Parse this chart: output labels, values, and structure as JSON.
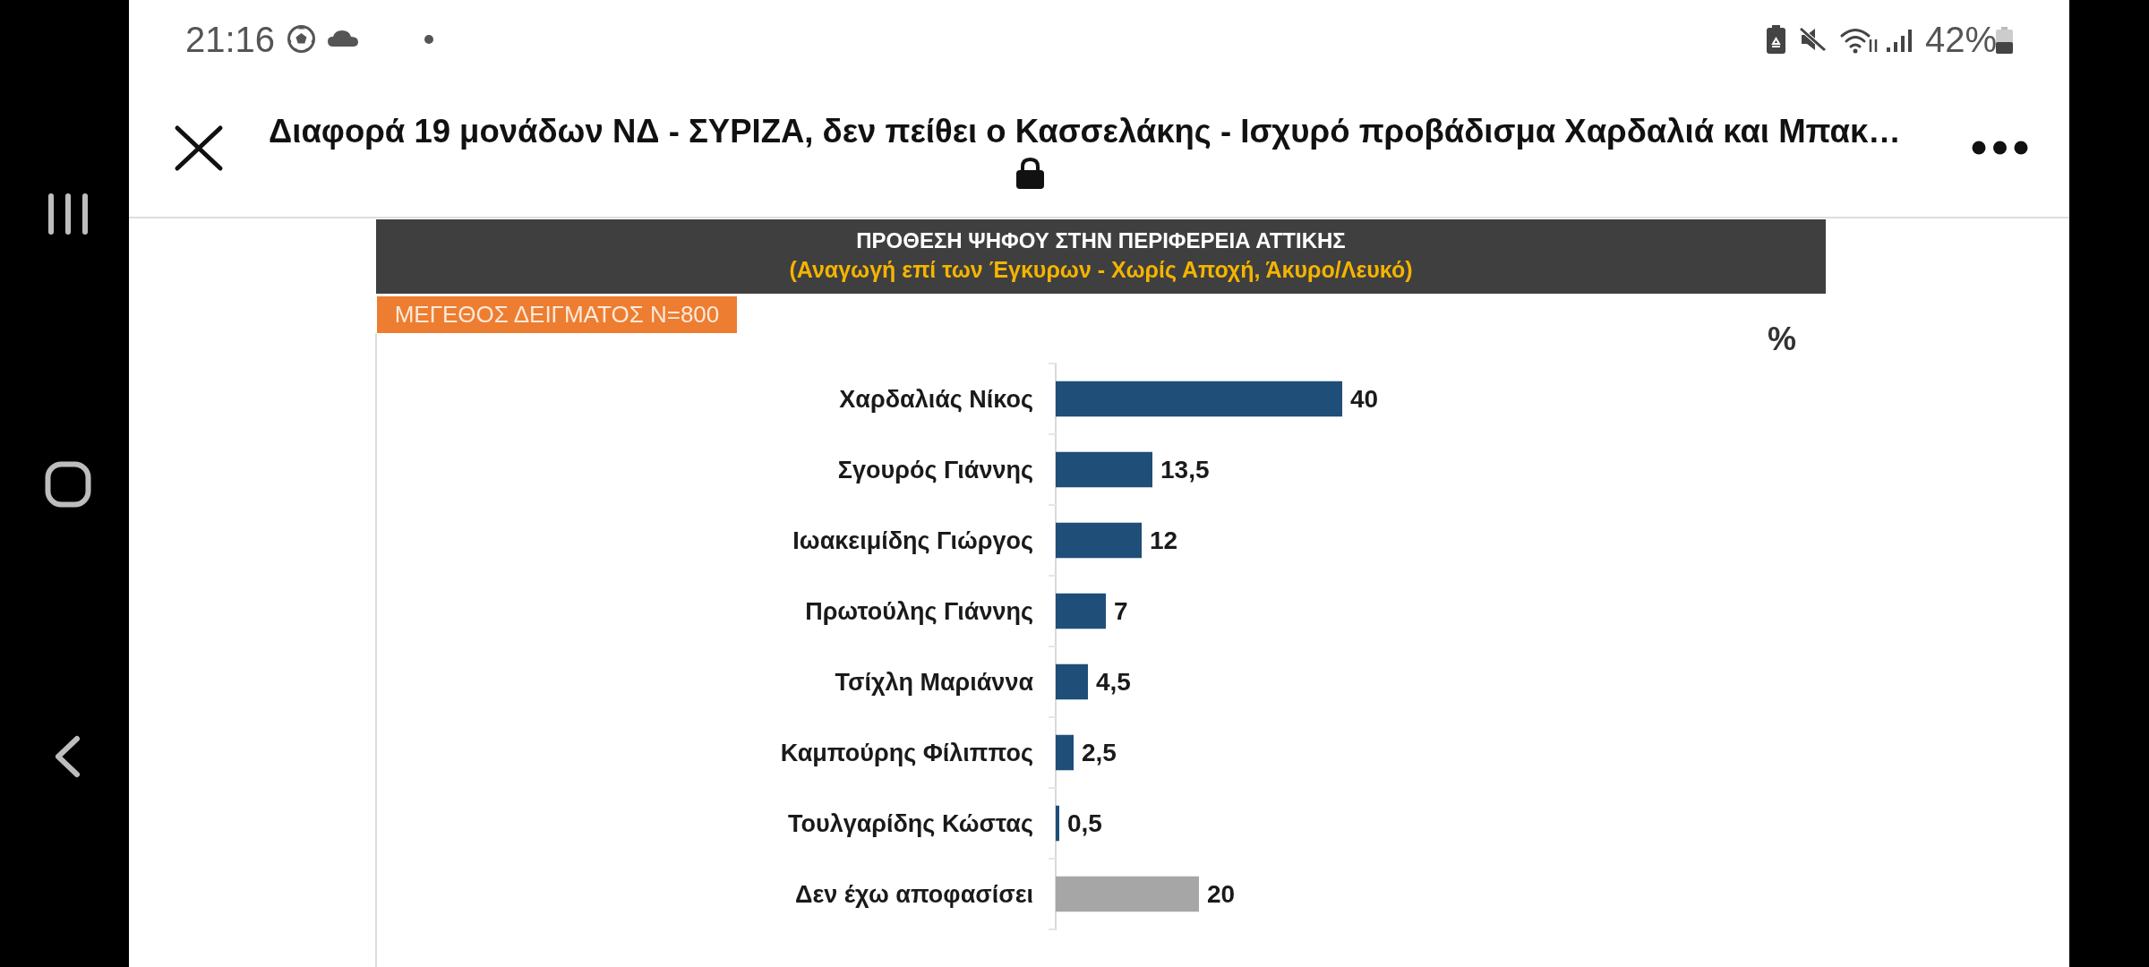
{
  "chart_data": {
    "type": "bar",
    "orientation": "horizontal",
    "title": "ΠΡΟΘΕΣΗ ΨΗΦΟΥ ΣΤΗΝ ΠΕΡΙΦΕΡΕΙΑ ΑΤΤΙΚΗΣ",
    "subtitle": "(Αναγωγή επί των Έγκυρων - Χωρίς Αποχή, Άκυρο/Λευκό)",
    "categories": [
      "Χαρδαλιάς Νίκος",
      "Σγουρός Γιάννης",
      "Ιωακειμίδης Γιώργος",
      "Πρωτούλης Γιάννης",
      "Τσίχλη Μαριάννα",
      "Καμπούρης Φίλιππος",
      "Τουλγαρίδης Κώστας",
      "Δεν έχω αποφασίσει"
    ],
    "values": [
      40,
      13.5,
      12,
      7,
      4.5,
      2.5,
      0.5,
      20
    ],
    "value_labels": [
      "40",
      "13,5",
      "12",
      "7",
      "4,5",
      "2,5",
      "0,5",
      "20"
    ],
    "colors": [
      "#1f4e79",
      "#1f4e79",
      "#1f4e79",
      "#1f4e79",
      "#1f4e79",
      "#1f4e79",
      "#1f4e79",
      "#a6a6a6"
    ],
    "annotations": [
      "21:16",
      "42%",
      "Διαφορά 19 μονάδων ΝΔ - ΣΥΡΙΖΑ, δεν πείθει ο Κασσελάκης - Ισχυρό προβάδισμα Χαρδαλιά και Μπακ…",
      "ΜΕΓΕΘΟΣ ΔΕΙΓΜΑΤΟΣ N=800",
      "%"
    ]
  }
}
